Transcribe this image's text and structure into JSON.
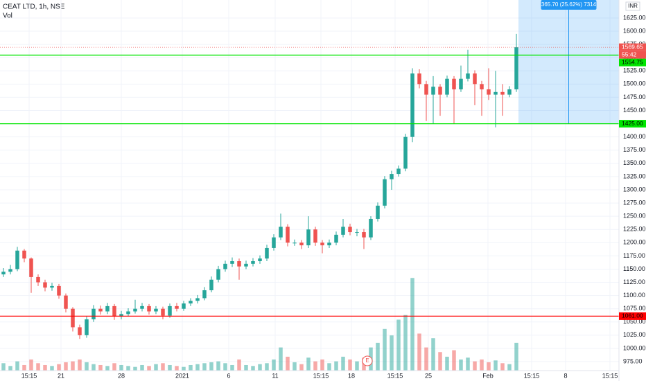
{
  "chart_data": {
    "type": "candlestick",
    "title": "CEAT LTD, 1h, NSE",
    "volume_label": "Vol",
    "currency": "INR",
    "open": [
      1140,
      1145,
      1150,
      1185,
      1170,
      1135,
      1125,
      1115,
      1118,
      1100,
      1075,
      1040,
      1025,
      1055,
      1075,
      1070,
      1080,
      1060,
      1065,
      1070,
      1075,
      1080,
      1070,
      1075,
      1062,
      1080,
      1075,
      1085,
      1090,
      1095,
      1110,
      1130,
      1150,
      1160,
      1165,
      1155,
      1160,
      1165,
      1170,
      1190,
      1210,
      1230,
      1200,
      1200,
      1195,
      1225,
      1200,
      1195,
      1200,
      1215,
      1230,
      1220,
      1220,
      1210,
      1245,
      1270,
      1320,
      1330,
      1340,
      1400,
      1520,
      1500,
      1480,
      1495,
      1480,
      1510,
      1490,
      1510,
      1520,
      1500,
      1490,
      1480,
      1485,
      1480,
      1490
    ],
    "high": [
      1152,
      1158,
      1192,
      1188,
      1172,
      1140,
      1130,
      1124,
      1122,
      1104,
      1078,
      1045,
      1060,
      1082,
      1081,
      1086,
      1084,
      1071,
      1076,
      1092,
      1086,
      1084,
      1080,
      1079,
      1085,
      1086,
      1090,
      1095,
      1101,
      1116,
      1136,
      1156,
      1166,
      1172,
      1170,
      1166,
      1171,
      1176,
      1196,
      1216,
      1255,
      1235,
      1206,
      1205,
      1250,
      1230,
      1205,
      1206,
      1221,
      1245,
      1236,
      1226,
      1226,
      1250,
      1276,
      1326,
      1336,
      1346,
      1406,
      1530,
      1528,
      1506,
      1515,
      1500,
      1516,
      1515,
      1535,
      1565,
      1526,
      1506,
      1530,
      1525,
      1500,
      1496,
      1595
    ],
    "low": [
      1135,
      1140,
      1146,
      1163,
      1105,
      1118,
      1108,
      1109,
      1094,
      1068,
      1032,
      1018,
      1020,
      1050,
      1064,
      1065,
      1054,
      1055,
      1060,
      1066,
      1070,
      1064,
      1065,
      1055,
      1058,
      1070,
      1071,
      1080,
      1085,
      1091,
      1106,
      1125,
      1145,
      1154,
      1130,
      1150,
      1155,
      1160,
      1165,
      1185,
      1205,
      1193,
      1194,
      1188,
      1190,
      1194,
      1180,
      1190,
      1195,
      1210,
      1214,
      1212,
      1188,
      1205,
      1240,
      1265,
      1300,
      1325,
      1335,
      1390,
      1492,
      1430,
      1425,
      1440,
      1475,
      1425,
      1485,
      1505,
      1460,
      1440,
      1470,
      1418,
      1440,
      1475,
      1485
    ],
    "close": [
      1145,
      1150,
      1185,
      1170,
      1135,
      1125,
      1115,
      1118,
      1100,
      1075,
      1040,
      1025,
      1055,
      1075,
      1070,
      1080,
      1060,
      1065,
      1070,
      1075,
      1080,
      1070,
      1075,
      1062,
      1080,
      1075,
      1085,
      1090,
      1095,
      1110,
      1130,
      1150,
      1160,
      1165,
      1155,
      1160,
      1165,
      1170,
      1190,
      1210,
      1230,
      1200,
      1200,
      1195,
      1225,
      1200,
      1195,
      1200,
      1215,
      1230,
      1220,
      1220,
      1210,
      1245,
      1270,
      1320,
      1330,
      1340,
      1400,
      1520,
      1500,
      1480,
      1495,
      1480,
      1510,
      1490,
      1510,
      1520,
      1500,
      1490,
      1480,
      1485,
      1480,
      1490,
      1569.65
    ],
    "volume": [
      8,
      5,
      10,
      6,
      12,
      8,
      6,
      5,
      7,
      9,
      10,
      12,
      9,
      7,
      6,
      5,
      8,
      6,
      5,
      4,
      6,
      5,
      7,
      8,
      6,
      5,
      4,
      6,
      7,
      8,
      9,
      10,
      8,
      6,
      12,
      6,
      5,
      7,
      8,
      12,
      25,
      15,
      9,
      7,
      14,
      10,
      12,
      8,
      10,
      15,
      12,
      10,
      14,
      25,
      30,
      45,
      38,
      55,
      60,
      100,
      40,
      25,
      35,
      20,
      15,
      22,
      12,
      14,
      10,
      12,
      9,
      11,
      8,
      7,
      30
    ],
    "up_color": "#26a69a",
    "down_color": "#ef5350",
    "ylim": [
      958,
      1659
    ],
    "yticks": [
      {
        "value": 975,
        "label": "975.00"
      },
      {
        "value": 1000,
        "label": "1000.00"
      },
      {
        "value": 1025,
        "label": "1025.00"
      },
      {
        "value": 1050,
        "label": "1050.00"
      },
      {
        "value": 1075,
        "label": "1075.00"
      },
      {
        "value": 1100,
        "label": "1100.00"
      },
      {
        "value": 1125,
        "label": "1125.00"
      },
      {
        "value": 1150,
        "label": "1150.00"
      },
      {
        "value": 1175,
        "label": "1175.00"
      },
      {
        "value": 1200,
        "label": "1200.00"
      },
      {
        "value": 1225,
        "label": "1225.00"
      },
      {
        "value": 1250,
        "label": "1250.00"
      },
      {
        "value": 1275,
        "label": "1275.00"
      },
      {
        "value": 1300,
        "label": "1300.00"
      },
      {
        "value": 1325,
        "label": "1325.00"
      },
      {
        "value": 1350,
        "label": "1350.00"
      },
      {
        "value": 1375,
        "label": "1375.00"
      },
      {
        "value": 1400,
        "label": "1400.00"
      },
      {
        "value": 1425,
        "label": "1425.00"
      },
      {
        "value": 1450,
        "label": "1450.00"
      },
      {
        "value": 1475,
        "label": "1475.00"
      },
      {
        "value": 1500,
        "label": "1500.00"
      },
      {
        "value": 1525,
        "label": "1525.00"
      },
      {
        "value": 1550,
        "label": "1550.00"
      },
      {
        "value": 1575,
        "label": "1575.00"
      },
      {
        "value": 1600,
        "label": "1600.00"
      },
      {
        "value": 1625,
        "label": "1625.00"
      }
    ],
    "y2lim": [
      0,
      400
    ],
    "xlim": [
      -0.5,
      88.8
    ],
    "xticks": [
      {
        "value": 3.7,
        "label": "15:15"
      },
      {
        "value": 8.3,
        "label": "21"
      },
      {
        "value": 17,
        "label": "28"
      },
      {
        "value": 25.8,
        "label": "2021"
      },
      {
        "value": 32.5,
        "label": "6"
      },
      {
        "value": 39.2,
        "label": "11"
      },
      {
        "value": 45.8,
        "label": "15:15"
      },
      {
        "value": 50.2,
        "label": "18"
      },
      {
        "value": 56.5,
        "label": "15:15"
      },
      {
        "value": 61.3,
        "label": "25"
      },
      {
        "value": 69.9,
        "label": "Feb"
      },
      {
        "value": 76.2,
        "label": "15:15"
      },
      {
        "value": 81.1,
        "label": "8"
      },
      {
        "value": 87.5,
        "label": "15:15"
      }
    ],
    "grid": true,
    "hlines": [
      {
        "value": 1554.75,
        "label": "1554.75",
        "color": "#00e600"
      },
      {
        "value": 1425,
        "label": "1425.00",
        "color": "#00e600"
      },
      {
        "value": 1061,
        "label": "1061.00",
        "color": "#ff0000"
      }
    ],
    "last_price": {
      "value": 1569.65,
      "label": "1569.65"
    },
    "countdown": "55:42",
    "measure": {
      "label": "365.70 (25.62%) 7314",
      "from": 1425
    },
    "earnings_marker": {
      "x": 52.5,
      "label": "E"
    }
  }
}
